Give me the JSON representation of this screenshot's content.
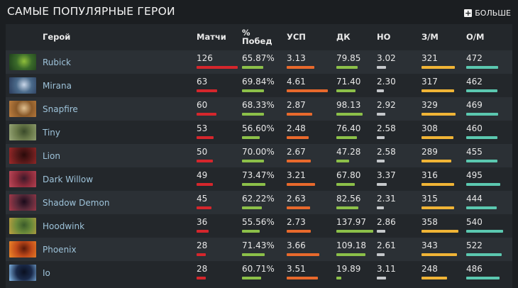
{
  "header": {
    "title": "САМЫЕ ПОПУЛЯРНЫЕ ГЕРОИ",
    "more_label": "БОЛЬШЕ"
  },
  "columns": {
    "hero": "Герой",
    "matches": "Матчи",
    "winrate_line1": "%",
    "winrate_line2": "Побед",
    "kda": "УСП",
    "dk": "ДК",
    "no": "НО",
    "zm": "З/М",
    "om": "О/М"
  },
  "rows": [
    {
      "hero": "Rubick",
      "matches": "126",
      "winrate": "65.87%",
      "kda": "3.13",
      "dk": "79.85",
      "no": "3.02",
      "zm": "321",
      "om": "472",
      "colors": [
        "#3a6a2a",
        "#1e3d1c",
        "#8fbf3a"
      ]
    },
    {
      "hero": "Mirana",
      "matches": "63",
      "winrate": "69.84%",
      "kda": "4.61",
      "dk": "71.40",
      "no": "2.30",
      "zm": "317",
      "om": "462",
      "colors": [
        "#4a6a8a",
        "#2a3a5a",
        "#c9d6e8"
      ]
    },
    {
      "hero": "Snapfire",
      "matches": "60",
      "winrate": "68.33%",
      "kda": "2.87",
      "dk": "98.13",
      "no": "2.92",
      "zm": "329",
      "om": "469",
      "colors": [
        "#8a5a2a",
        "#c08040",
        "#e0c090"
      ]
    },
    {
      "hero": "Tiny",
      "matches": "53",
      "winrate": "56.60%",
      "kda": "2.48",
      "dk": "76.40",
      "no": "2.58",
      "zm": "308",
      "om": "460",
      "colors": [
        "#6a7a4a",
        "#9aa87a",
        "#3a4a2a"
      ]
    },
    {
      "hero": "Lion",
      "matches": "50",
      "winrate": "70.00%",
      "kda": "2.67",
      "dk": "47.28",
      "no": "2.58",
      "zm": "289",
      "om": "455",
      "colors": [
        "#5a1a1a",
        "#a02a2a",
        "#2a0a0a"
      ]
    },
    {
      "hero": "Dark Willow",
      "matches": "49",
      "winrate": "73.47%",
      "kda": "3.21",
      "dk": "67.80",
      "no": "3.37",
      "zm": "316",
      "om": "495",
      "colors": [
        "#8a2a3a",
        "#c04a5a",
        "#3a1a2a"
      ]
    },
    {
      "hero": "Shadow Demon",
      "matches": "45",
      "winrate": "62.22%",
      "kda": "2.63",
      "dk": "82.56",
      "no": "2.31",
      "zm": "315",
      "om": "444",
      "colors": [
        "#5a2a3a",
        "#aa3a4a",
        "#1a0a1a"
      ]
    },
    {
      "hero": "Hoodwink",
      "matches": "36",
      "winrate": "55.56%",
      "kda": "2.73",
      "dk": "137.97",
      "no": "2.86",
      "zm": "358",
      "om": "540",
      "colors": [
        "#6a8a3a",
        "#c0a040",
        "#3a5a2a"
      ]
    },
    {
      "hero": "Phoenix",
      "matches": "28",
      "winrate": "71.43%",
      "kda": "3.66",
      "dk": "109.18",
      "no": "2.61",
      "zm": "343",
      "om": "522",
      "colors": [
        "#c04a1a",
        "#f08a2a",
        "#5a1a0a"
      ]
    },
    {
      "hero": "Io",
      "matches": "28",
      "winrate": "60.71%",
      "kda": "3.51",
      "dk": "19.89",
      "no": "3.11",
      "zm": "248",
      "om": "486",
      "colors": [
        "#1a2a4a",
        "#8ac0f0",
        "#0a1020"
      ]
    }
  ]
}
